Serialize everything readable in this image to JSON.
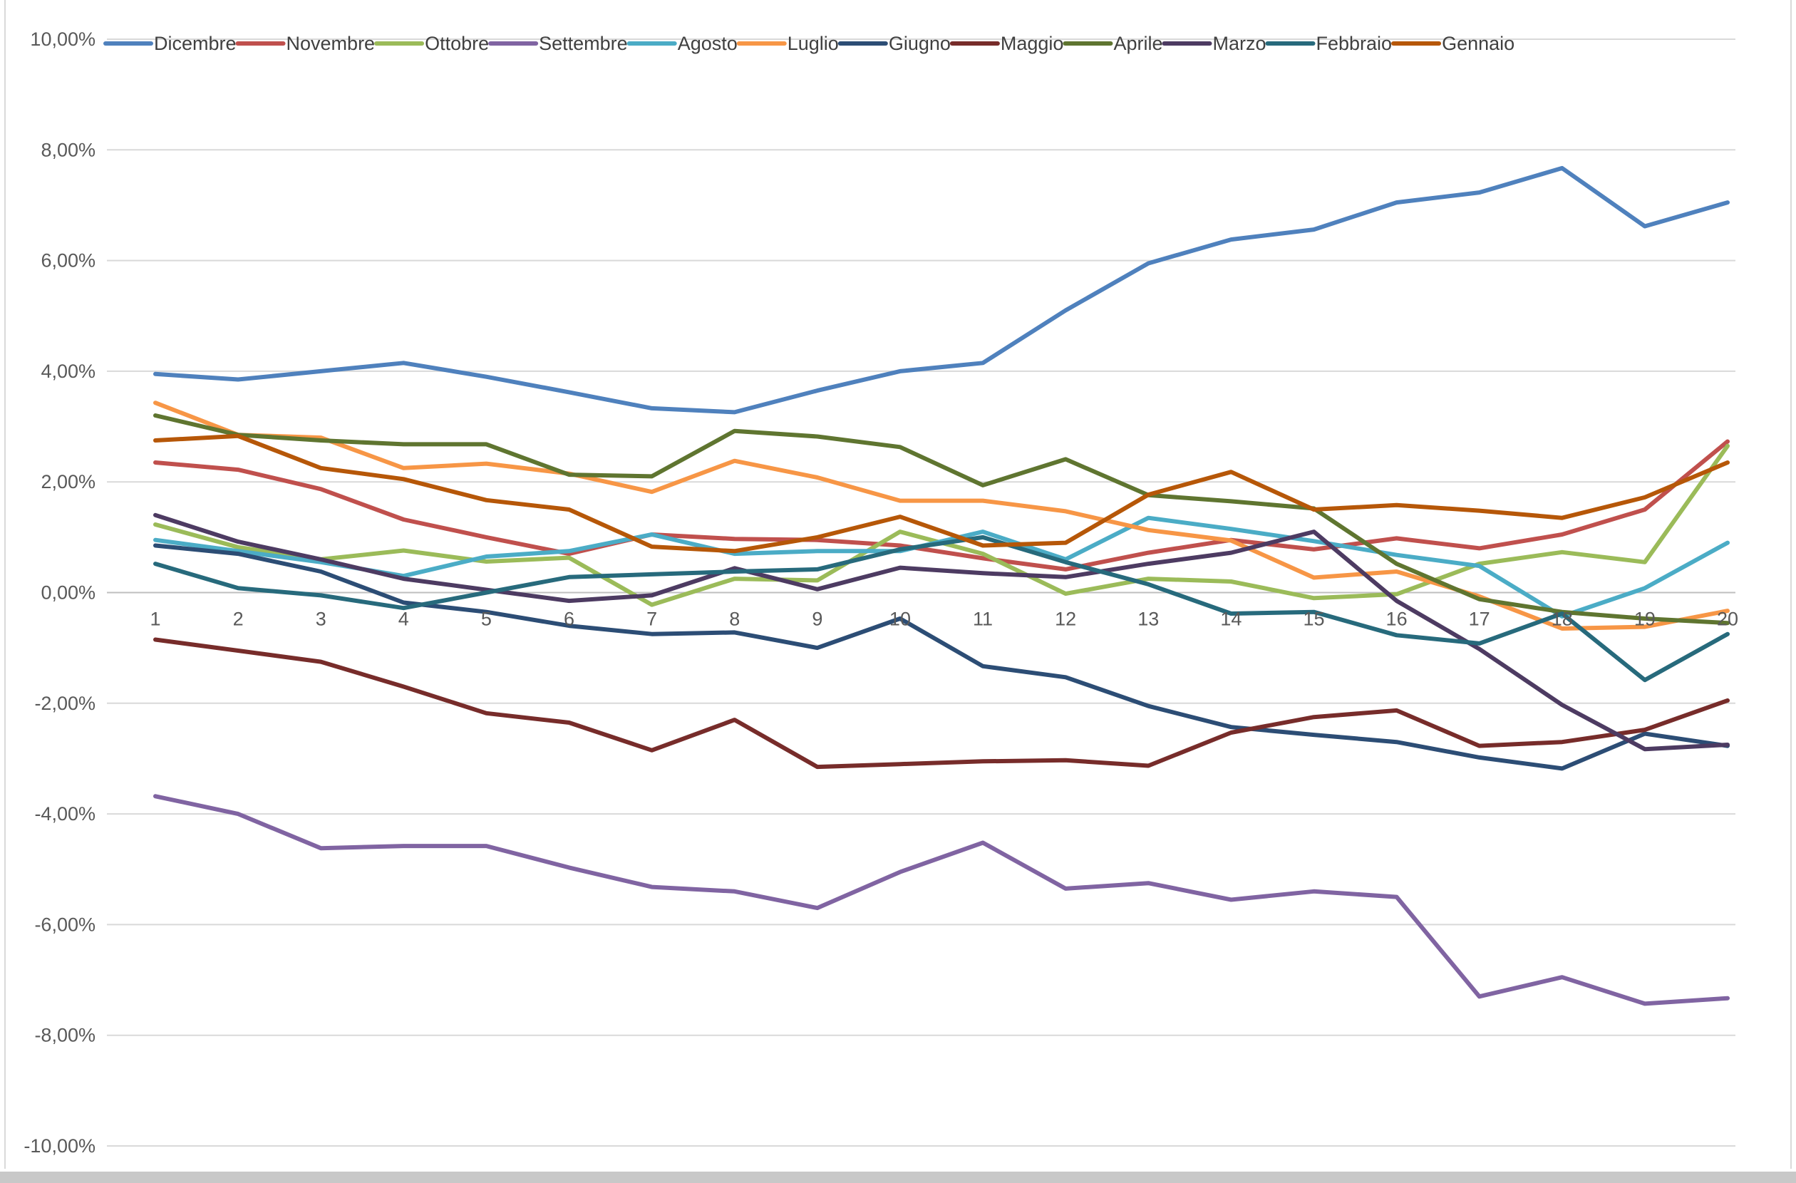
{
  "chart_data": {
    "type": "line",
    "title": "",
    "xlabel": "",
    "ylabel": "",
    "x": [
      1,
      2,
      3,
      4,
      5,
      6,
      7,
      8,
      9,
      10,
      11,
      12,
      13,
      14,
      15,
      16,
      17,
      18,
      19,
      20
    ],
    "ylim": [
      -10,
      10
    ],
    "yticks": [
      {
        "value": 10,
        "label": "10,00%"
      },
      {
        "value": 8,
        "label": "8,00%"
      },
      {
        "value": 6,
        "label": "6,00%"
      },
      {
        "value": 4,
        "label": "4,00%"
      },
      {
        "value": 2,
        "label": "2,00%"
      },
      {
        "value": 0,
        "label": "0,00%"
      },
      {
        "value": -2,
        "label": "-2,00%"
      },
      {
        "value": -4,
        "label": "-4,00%"
      },
      {
        "value": -6,
        "label": "-6,00%"
      },
      {
        "value": -8,
        "label": "-8,00%"
      },
      {
        "value": -10,
        "label": "-10,00%"
      }
    ],
    "grid": true,
    "legend_position": "top",
    "series": [
      {
        "name": "Dicembre",
        "color": "#4F81BD",
        "values": [
          3.95,
          3.85,
          4.0,
          4.15,
          3.9,
          3.62,
          3.33,
          3.26,
          3.65,
          4.0,
          4.15,
          5.1,
          5.95,
          6.38,
          6.56,
          7.05,
          7.23,
          7.67,
          6.62,
          7.05
        ]
      },
      {
        "name": "Novembre",
        "color": "#C0504D",
        "values": [
          2.35,
          2.22,
          1.87,
          1.32,
          1.0,
          0.7,
          1.05,
          0.97,
          0.95,
          0.85,
          0.62,
          0.42,
          0.72,
          0.95,
          0.78,
          0.98,
          0.8,
          1.05,
          1.5,
          2.73
        ]
      },
      {
        "name": "Ottobre",
        "color": "#9BBB59",
        "values": [
          1.23,
          0.82,
          0.6,
          0.76,
          0.56,
          0.63,
          -0.22,
          0.25,
          0.22,
          1.1,
          0.7,
          -0.02,
          0.25,
          0.2,
          -0.1,
          -0.03,
          0.52,
          0.73,
          0.55,
          2.65
        ]
      },
      {
        "name": "Settembre",
        "color": "#8064A2",
        "values": [
          -3.68,
          -4.0,
          -4.62,
          -4.58,
          -4.58,
          -4.97,
          -5.32,
          -5.4,
          -5.7,
          -5.05,
          -4.52,
          -5.35,
          -5.25,
          -5.55,
          -5.4,
          -5.5,
          -7.3,
          -6.95,
          -7.43,
          -7.33
        ]
      },
      {
        "name": "Agosto",
        "color": "#4BACC6",
        "values": [
          0.95,
          0.75,
          0.55,
          0.3,
          0.65,
          0.75,
          1.05,
          0.7,
          0.75,
          0.75,
          1.1,
          0.6,
          1.35,
          1.15,
          0.93,
          0.68,
          0.48,
          -0.43,
          0.08,
          0.9
        ]
      },
      {
        "name": "Luglio",
        "color": "#F79646",
        "values": [
          3.43,
          2.85,
          2.8,
          2.25,
          2.33,
          2.15,
          1.82,
          2.38,
          2.08,
          1.66,
          1.66,
          1.47,
          1.13,
          0.94,
          0.27,
          0.38,
          -0.07,
          -0.65,
          -0.62,
          -0.33
        ]
      },
      {
        "name": "Giugno",
        "color": "#2C4D75",
        "values": [
          0.85,
          0.7,
          0.38,
          -0.18,
          -0.35,
          -0.6,
          -0.75,
          -0.72,
          -1.0,
          -0.47,
          -1.33,
          -1.53,
          -2.05,
          -2.43,
          -2.57,
          -2.7,
          -2.98,
          -3.18,
          -2.55,
          -2.77
        ]
      },
      {
        "name": "Maggio",
        "color": "#772C2A",
        "values": [
          -0.85,
          -1.05,
          -1.25,
          -1.7,
          -2.18,
          -2.35,
          -2.85,
          -2.3,
          -3.15,
          -3.1,
          -3.05,
          -3.03,
          -3.13,
          -2.53,
          -2.25,
          -2.13,
          -2.77,
          -2.7,
          -2.48,
          -1.95
        ]
      },
      {
        "name": "Aprile",
        "color": "#5F7530",
        "values": [
          3.2,
          2.85,
          2.75,
          2.68,
          2.68,
          2.13,
          2.1,
          2.92,
          2.82,
          2.63,
          1.94,
          2.41,
          1.76,
          1.65,
          1.52,
          0.52,
          -0.12,
          -0.35,
          -0.47,
          -0.55
        ]
      },
      {
        "name": "Marzo",
        "color": "#4D3B62",
        "values": [
          1.4,
          0.92,
          0.6,
          0.25,
          0.05,
          -0.15,
          -0.05,
          0.44,
          0.06,
          0.45,
          0.35,
          0.28,
          0.52,
          0.72,
          1.1,
          -0.15,
          -1.02,
          -2.03,
          -2.83,
          -2.75
        ]
      },
      {
        "name": "Febbraio",
        "color": "#276A7C",
        "values": [
          0.52,
          0.08,
          -0.05,
          -0.28,
          0.0,
          0.28,
          0.33,
          0.38,
          0.42,
          0.78,
          1.0,
          0.55,
          0.15,
          -0.38,
          -0.35,
          -0.77,
          -0.92,
          -0.38,
          -1.58,
          -0.75
        ]
      },
      {
        "name": "Gennaio",
        "color": "#B65708",
        "values": [
          2.75,
          2.83,
          2.25,
          2.05,
          1.67,
          1.5,
          0.83,
          0.75,
          1.0,
          1.37,
          0.85,
          0.9,
          1.77,
          2.18,
          1.5,
          1.58,
          1.48,
          1.35,
          1.72,
          2.35
        ]
      }
    ]
  }
}
